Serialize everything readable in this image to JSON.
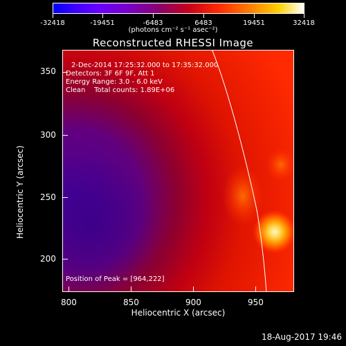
{
  "colorbar": {
    "labels": [
      "-32418",
      "-19451",
      "-6483",
      "6483",
      "19451",
      "32418"
    ],
    "units": "(photons cm⁻² s⁻¹ asec⁻²)"
  },
  "title": "Reconstructed RHESSI Image",
  "info": {
    "time_range": "2-Dec-2014 17:25:32.000 to 17:35:32.000",
    "detectors": "Detectors: 3F 6F 9F, Att 1",
    "energy": "Energy Range: 3.0 - 6.0 keV",
    "clean": "Clean    Total counts: 1.89E+06",
    "peak": "Position of Peak = [964,222]"
  },
  "axes": {
    "xlabel": "Heliocentric X (arcsec)",
    "ylabel": "Heliocentric Y (arcsec)",
    "xticks": [
      "800",
      "850",
      "900",
      "950"
    ],
    "yticks": [
      "200",
      "250",
      "300",
      "350"
    ]
  },
  "datestamp": "18-Aug-2017 19:46",
  "colors": {
    "background": "#000000",
    "limb": "#ffffff",
    "peak": "#fff6c8"
  }
}
